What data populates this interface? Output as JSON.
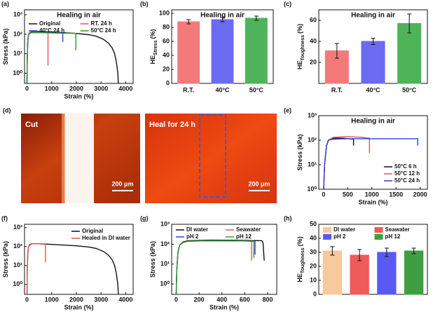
{
  "chart_data": [
    {
      "label": "(a)",
      "type": "line",
      "title": "Healing in air",
      "xlabel": "Strain (%)",
      "ylabel": "Stress (kPa)",
      "xlim": [
        -100,
        4300
      ],
      "xticks": [
        0,
        1000,
        2000,
        3000,
        4000
      ],
      "yscale": "log",
      "ylim": [
        0.3,
        1800
      ],
      "yticks": [
        {
          "value": 1,
          "label": "10⁰"
        },
        {
          "value": 10,
          "label": "10¹"
        },
        {
          "value": 100,
          "label": "10²"
        },
        {
          "value": 1000,
          "label": "10³"
        }
      ],
      "legend": "top",
      "legend_columns": 2,
      "series": [
        {
          "name": "Original",
          "color": "#111111",
          "x": [
            0,
            10,
            30,
            60,
            100,
            200,
            500,
            1000,
            1500,
            2000,
            2500,
            2800,
            3100,
            3300,
            3450,
            3550,
            3620,
            3680,
            3700
          ],
          "values": [
            0.3,
            5,
            40,
            90,
            120,
            140,
            140,
            130,
            120,
            110,
            95,
            80,
            55,
            35,
            20,
            10,
            4,
            1,
            0.3
          ]
        },
        {
          "name": "RT. 24 h",
          "color": "#e8525a",
          "x": [
            0,
            10,
            30,
            60,
            100,
            200,
            500,
            850,
            850
          ],
          "values": [
            0.3,
            5,
            40,
            90,
            120,
            130,
            130,
            120,
            2.5
          ]
        },
        {
          "name": "40°C 24 h",
          "color": "#2d3fe0",
          "x": [
            0,
            10,
            30,
            60,
            100,
            200,
            600,
            1000,
            1450,
            1450
          ],
          "values": [
            0.3,
            5,
            40,
            90,
            115,
            125,
            125,
            120,
            115,
            40
          ]
        },
        {
          "name": "50°C 24 h",
          "color": "#2e9a2e",
          "x": [
            0,
            10,
            30,
            60,
            100,
            200,
            600,
            1200,
            1980,
            1980
          ],
          "values": [
            0.3,
            5,
            40,
            90,
            110,
            120,
            120,
            115,
            110,
            15
          ]
        }
      ]
    },
    {
      "label": "(b)",
      "type": "bar",
      "title": "Healing in air",
      "ylabel": "HE",
      "ylabel_sub": "Stress",
      "ylabel_unit": "(%)",
      "categories": [
        "R.T.",
        "40°C",
        "50°C"
      ],
      "values": [
        88,
        91,
        93
      ],
      "errors": [
        3,
        3,
        3
      ],
      "colors": [
        "#f47a7a",
        "#6b6bf2",
        "#4fb35a"
      ],
      "ylim": [
        0,
        105
      ],
      "yticks": [
        0,
        20,
        40,
        60,
        80,
        100
      ]
    },
    {
      "label": "(c)",
      "type": "bar",
      "title": "Healing in air",
      "ylabel": "HE",
      "ylabel_sub": "Toughness",
      "ylabel_unit": "(%)",
      "categories": [
        "R.T.",
        "40°C",
        "50°C"
      ],
      "values": [
        31,
        40,
        57
      ],
      "errors": [
        7,
        3,
        9
      ],
      "colors": [
        "#f47a7a",
        "#6b6bf2",
        "#4fb35a"
      ],
      "ylim": [
        0,
        70
      ],
      "yticks": [
        20,
        40,
        60
      ]
    },
    {
      "label": "(e)",
      "type": "line",
      "title": "Healing in air",
      "xlabel": "Strain (%)",
      "ylabel": "Stress (kPa)",
      "xlim": [
        -100,
        2150
      ],
      "xticks": [
        0,
        500,
        1000,
        1500,
        2000
      ],
      "yscale": "log",
      "ylim": [
        1,
        1000
      ],
      "yticks": [
        {
          "value": 1,
          "label": "10⁰"
        },
        {
          "value": 10,
          "label": "10¹"
        },
        {
          "value": 100,
          "label": "10²"
        },
        {
          "value": 1000,
          "label": "10³"
        }
      ],
      "legend": "lower right",
      "legend_columns": 1,
      "series": [
        {
          "name": "50°C  6 h",
          "color": "#111111",
          "x": [
            0,
            20,
            60,
            100,
            200,
            400,
            620,
            620
          ],
          "values": [
            1,
            10,
            60,
            100,
            120,
            120,
            110,
            60
          ]
        },
        {
          "name": "50°C 12 h",
          "color": "#e8525a",
          "x": [
            0,
            20,
            60,
            100,
            200,
            500,
            800,
            950,
            950
          ],
          "values": [
            1,
            10,
            60,
            100,
            130,
            140,
            130,
            120,
            30
          ]
        },
        {
          "name": "50°C 24 h",
          "color": "#2d3fe0",
          "x": [
            0,
            20,
            60,
            100,
            200,
            500,
            1000,
            1500,
            1950,
            1950
          ],
          "values": [
            1,
            10,
            60,
            100,
            110,
            115,
            115,
            115,
            115,
            60
          ]
        }
      ]
    },
    {
      "label": "(f)",
      "type": "line",
      "xlabel": "Strain (%)",
      "ylabel": "Stress (kPa)",
      "xlim": [
        -100,
        4300
      ],
      "xticks": [
        0,
        1000,
        2000,
        3000,
        4000
      ],
      "yscale": "log",
      "ylim": [
        0.3,
        1500
      ],
      "yticks": [
        {
          "value": 1,
          "label": "10⁰"
        },
        {
          "value": 10,
          "label": "10¹"
        },
        {
          "value": 100,
          "label": "10²"
        },
        {
          "value": 1000,
          "label": "10³"
        }
      ],
      "legend": "upper right",
      "legend_columns": 1,
      "series": [
        {
          "name": "Original",
          "color": "#111111",
          "x": [
            0,
            10,
            30,
            60,
            100,
            200,
            500,
            1000,
            1500,
            2000,
            2500,
            2800,
            3100,
            3300,
            3450,
            3550,
            3620,
            3680,
            3700
          ],
          "values": [
            0.3,
            5,
            40,
            90,
            120,
            140,
            140,
            130,
            120,
            110,
            95,
            80,
            55,
            35,
            20,
            10,
            4,
            1,
            0.3
          ]
        },
        {
          "name": "Healed in DI water",
          "color": "#e8525a",
          "x": [
            0,
            10,
            30,
            60,
            100,
            200,
            500,
            750,
            750
          ],
          "values": [
            0.3,
            5,
            40,
            90,
            130,
            140,
            140,
            130,
            15
          ]
        }
      ]
    },
    {
      "label": "(g)",
      "type": "line",
      "xlabel": "Strain (%)",
      "ylabel": "Stress (kPa)",
      "xlim": [
        -40,
        880
      ],
      "xticks": [
        0,
        200,
        400,
        600,
        800
      ],
      "yscale": "log",
      "ylim": [
        0.3,
        1000
      ],
      "yticks": [
        {
          "value": 1,
          "label": "10⁰"
        },
        {
          "value": 10,
          "label": "10¹"
        },
        {
          "value": 100,
          "label": "10²"
        },
        {
          "value": 1000,
          "label": "10³"
        }
      ],
      "legend": "top",
      "legend_columns": 2,
      "series": [
        {
          "name": "DI water",
          "color": "#111111",
          "x": [
            0,
            5,
            15,
            30,
            60,
            100,
            300,
            600,
            750,
            760,
            770
          ],
          "values": [
            0.3,
            5,
            40,
            90,
            130,
            150,
            160,
            155,
            150,
            120,
            15
          ]
        },
        {
          "name": "Seawater",
          "color": "#e8525a",
          "x": [
            0,
            5,
            15,
            30,
            60,
            100,
            300,
            600,
            660,
            660
          ],
          "values": [
            0.3,
            5,
            40,
            90,
            120,
            140,
            150,
            145,
            140,
            15
          ]
        },
        {
          "name": "pH 2",
          "color": "#2d3fe0",
          "x": [
            0,
            5,
            15,
            30,
            60,
            100,
            300,
            600,
            690,
            690
          ],
          "values": [
            0.3,
            5,
            40,
            90,
            120,
            140,
            150,
            145,
            140,
            30
          ]
        },
        {
          "name": "pH 12",
          "color": "#2e9a2e",
          "x": [
            0,
            5,
            15,
            30,
            60,
            100,
            300,
            600,
            680,
            680
          ],
          "values": [
            0.3,
            5,
            40,
            90,
            120,
            140,
            150,
            145,
            140,
            20
          ]
        }
      ]
    },
    {
      "label": "(h)",
      "type": "bar",
      "ylabel": "HE",
      "ylabel_sub": "Toughness",
      "ylabel_unit": "(%)",
      "ylim": [
        0,
        50
      ],
      "yticks": [
        0,
        10,
        20,
        30,
        40,
        50
      ],
      "legend": "top",
      "legend_columns": 2,
      "series": [
        {
          "name": "DI water",
          "color": "#f7c99b",
          "values": [
            31
          ],
          "errors": [
            3
          ]
        },
        {
          "name": "Seawater",
          "color": "#ef5a5a",
          "values": [
            28
          ],
          "errors": [
            4
          ]
        },
        {
          "name": "pH 2",
          "color": "#5a5af0",
          "values": [
            30
          ],
          "errors": [
            3
          ]
        },
        {
          "name": "pH 12",
          "color": "#3f9f3f",
          "values": [
            31
          ],
          "errors": [
            2
          ]
        }
      ]
    }
  ],
  "image_panel": {
    "label": "(d)",
    "left": {
      "caption": "Cut",
      "scale": "200 μm"
    },
    "right": {
      "caption": "Heal for 24 h",
      "scale": "200 μm"
    }
  }
}
